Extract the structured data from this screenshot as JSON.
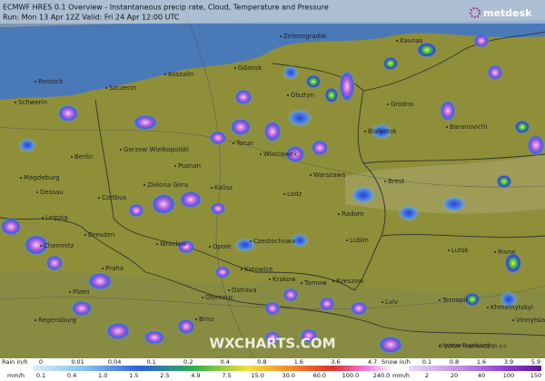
{
  "header": {
    "title": "ECMWF HRES 0.1 Overview - Instantaneous precip rate, Cloud, Temperature and Pressure",
    "run": "Run: Mon 13 Apr 12Z Valid: Fri 24 Apr 12:00 UTC"
  },
  "logo": "metdesk",
  "watermark": "WXCHARTS.COM",
  "credit": "© ECMWF modified CC BY 4.0",
  "cities": [
    "Kaunas",
    "Zelenogradsk",
    "Rostock",
    "Gdansk",
    "Koszalin",
    "Olsztyn",
    "Szczecin",
    "Schwerin",
    "Grodno",
    "Bialystok",
    "Gorzow Wielkopolski",
    "Torun",
    "Wloclawek",
    "Berlin",
    "Poznan",
    "Magdeburg",
    "Dessau",
    "Cottbus",
    "Zielona Gora",
    "Kalisz",
    "Lodz",
    "Warszawa",
    "Brest",
    "Radom",
    "Lublin",
    "Leipzig",
    "Chemnitz",
    "Dresden",
    "Wroclaw",
    "Opole",
    "Czestochowa",
    "Lutsk",
    "Rivne",
    "Praha",
    "Katowice",
    "Krakow",
    "Tarnow",
    "Rzeszow",
    "Lviv",
    "Ternopil",
    "Khmelnytskyi",
    "Plzen",
    "Olomouc",
    "Ostrava",
    "Brno",
    "Regensburg",
    "Ivano-Frankivsk",
    "Vinnytsia",
    "Baranovichi",
    "Grodno"
  ],
  "legend": {
    "rain": {
      "label": "Rain in/h",
      "in_values": [
        "0",
        "0.01",
        "0.04",
        "0.1",
        "0.2",
        "0.4",
        "0.8",
        "1.6",
        "3.6",
        "4.7"
      ],
      "unit": "mm/h",
      "mm_values": [
        "0.1",
        "0.4",
        "1.0",
        "1.5",
        "2.5",
        "4.9",
        "7.5",
        "15.0",
        "30.0",
        "60.0",
        "100.0",
        "240.0"
      ]
    },
    "snow": {
      "label": "Snow in/h",
      "in_values": [
        "0.1",
        "0.8",
        "1.6",
        "3.9",
        "5.9"
      ],
      "unit": "mm/h",
      "mm_values": [
        "2",
        "20",
        "40",
        "100",
        "150"
      ]
    }
  }
}
